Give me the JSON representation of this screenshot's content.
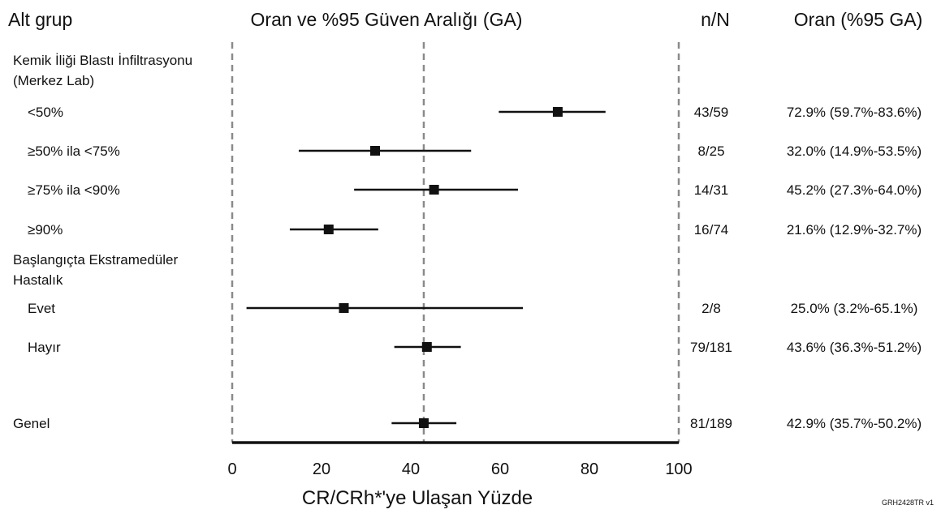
{
  "headers": {
    "subgroup": "Alt grup",
    "plot": "Oran ve %95 Güven Aralığı (GA)",
    "nN": "n/N",
    "rate": "Oran (%95 GA)"
  },
  "chart_data": {
    "type": "forest",
    "xlabel": "CR/CRh*'ye Ulaşan Yüzde",
    "xlim": [
      0,
      100
    ],
    "xticks": [
      0,
      20,
      40,
      60,
      80,
      100
    ],
    "reference_line": 42.9,
    "groups": [
      {
        "label_lines": [
          "Kemik İliği Blastı İnfiltrasyonu",
          "(Merkez Lab)"
        ]
      },
      {
        "label_lines": [
          "Başlangıçta Ekstramedüler",
          "Hastalık"
        ]
      }
    ],
    "rows": [
      {
        "label": "<50%",
        "group": 0,
        "estimate": 72.9,
        "lower": 59.7,
        "upper": 83.6,
        "nN": "43/59",
        "ci_text": "72.9% (59.7%-83.6%)"
      },
      {
        "label": "≥50% ila <75%",
        "group": 0,
        "estimate": 32.0,
        "lower": 14.9,
        "upper": 53.5,
        "nN": "8/25",
        "ci_text": "32.0% (14.9%-53.5%)"
      },
      {
        "label": "≥75% ila <90%",
        "group": 0,
        "estimate": 45.2,
        "lower": 27.3,
        "upper": 64.0,
        "nN": "14/31",
        "ci_text": "45.2% (27.3%-64.0%)"
      },
      {
        "label": "≥90%",
        "group": 0,
        "estimate": 21.6,
        "lower": 12.9,
        "upper": 32.7,
        "nN": "16/74",
        "ci_text": "21.6% (12.9%-32.7%)"
      },
      {
        "label": "Evet",
        "group": 1,
        "estimate": 25.0,
        "lower": 3.2,
        "upper": 65.1,
        "nN": "2/8",
        "ci_text": "25.0% (3.2%-65.1%)"
      },
      {
        "label": "Hayır",
        "group": 1,
        "estimate": 43.6,
        "lower": 36.3,
        "upper": 51.2,
        "nN": "79/181",
        "ci_text": "43.6% (36.3%-51.2%)"
      },
      {
        "label": "Genel",
        "group": null,
        "estimate": 42.9,
        "lower": 35.7,
        "upper": 50.2,
        "nN": "81/189",
        "ci_text": "42.9% (35.7%-50.2%)"
      }
    ]
  },
  "footer_code": "GRH2428TR v1"
}
